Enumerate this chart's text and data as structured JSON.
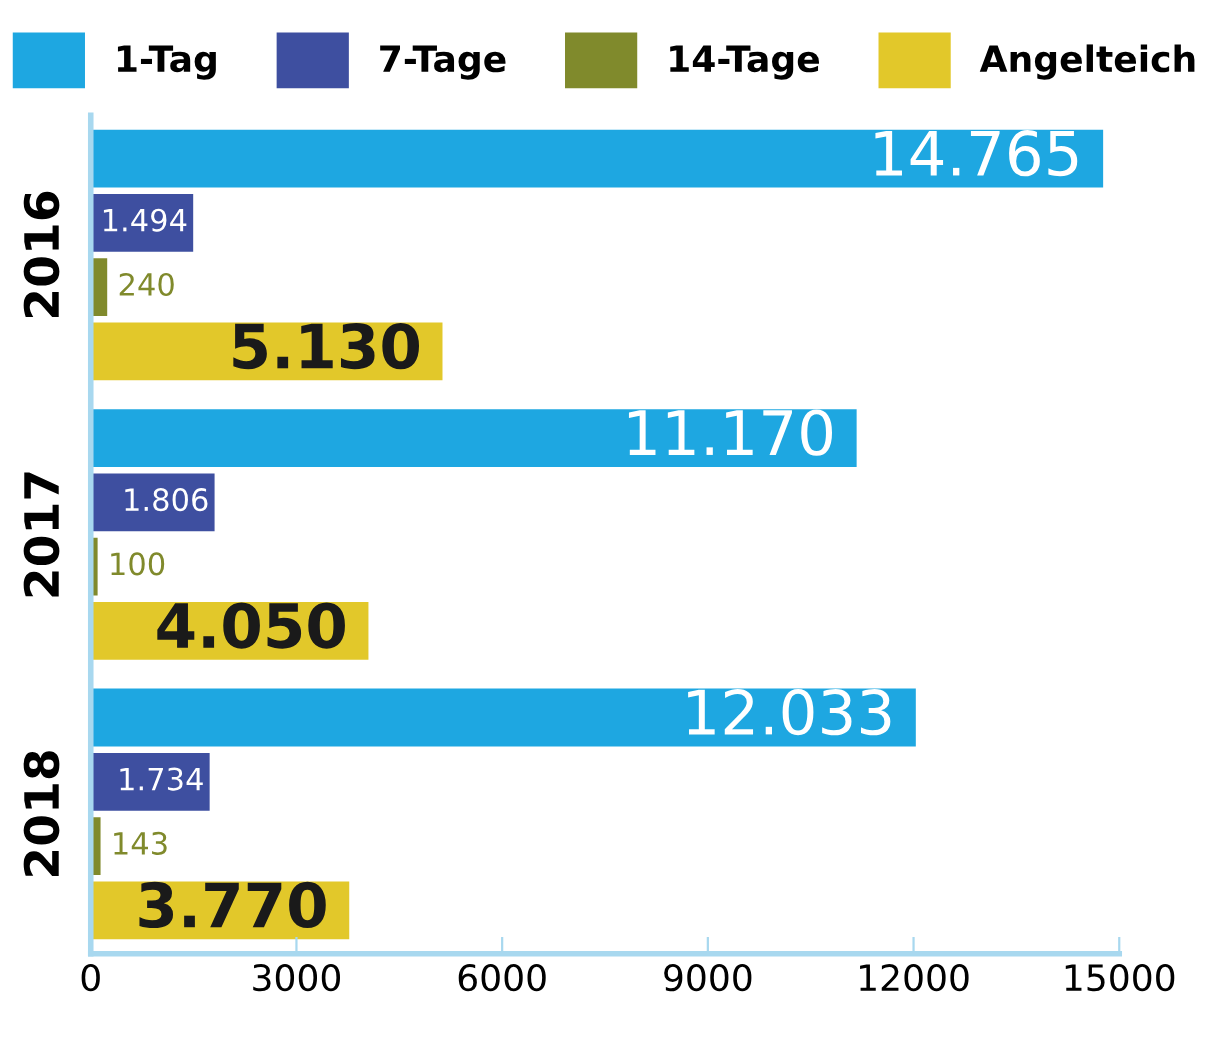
{
  "chart_data": {
    "type": "bar",
    "orientation": "horizontal",
    "categories": [
      "2016",
      "2017",
      "2018"
    ],
    "series": [
      {
        "name": "1-Tag",
        "color": "#1ea7e1",
        "values": [
          14765,
          11170,
          12033
        ],
        "value_labels": [
          "14.765",
          "11.170",
          "12.033"
        ]
      },
      {
        "name": "7-Tage",
        "color": "#3e4fa0",
        "values": [
          1494,
          1806,
          1734
        ],
        "value_labels": [
          "1.494",
          "1.806",
          "1.734"
        ]
      },
      {
        "name": "14-Tage",
        "color": "#808a2c",
        "values": [
          240,
          100,
          143
        ],
        "value_labels": [
          "240",
          "100",
          "143"
        ]
      },
      {
        "name": "Angelteich",
        "color": "#e2c82a",
        "values": [
          5130,
          4050,
          3770
        ],
        "value_labels": [
          "5.130",
          "4.050",
          "3.770"
        ]
      }
    ],
    "xlim": [
      0,
      15000
    ],
    "xticks": [
      0,
      3000,
      6000,
      9000,
      12000,
      15000
    ],
    "legend": "top",
    "grid": false
  }
}
